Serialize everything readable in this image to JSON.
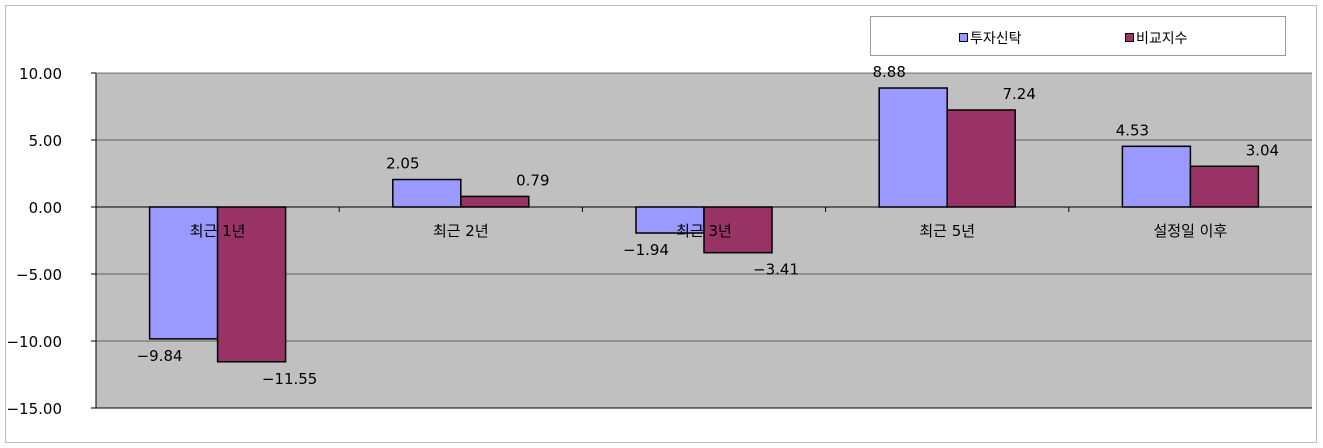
{
  "chart_data": {
    "type": "bar",
    "categories": [
      "최근 1년",
      "최근 2년",
      "최근 3년",
      "최근 5년",
      "설정일 이후"
    ],
    "series": [
      {
        "name": "투자신탁",
        "values": [
          -9.84,
          2.05,
          -1.94,
          8.88,
          4.53
        ],
        "labels": [
          "−9.84",
          "2.05",
          "−1.94",
          "8.88",
          "4.53"
        ],
        "color": "#9999ff"
      },
      {
        "name": "비교지수",
        "values": [
          -11.55,
          0.79,
          -3.41,
          7.24,
          3.04
        ],
        "labels": [
          "−11.55",
          "0.79",
          "−3.41",
          "7.24",
          "3.04"
        ],
        "color": "#993366"
      }
    ],
    "ylim": [
      -15,
      10
    ],
    "yticks": [
      10,
      5,
      0,
      -5,
      -10,
      -15
    ],
    "ytick_labels": [
      "10.00",
      "5.00",
      "0.00",
      "−5.00",
      "−10.00",
      "−15.00"
    ],
    "plot_background": "#c0c0c0",
    "grid": true,
    "legend_position": "top-right"
  }
}
